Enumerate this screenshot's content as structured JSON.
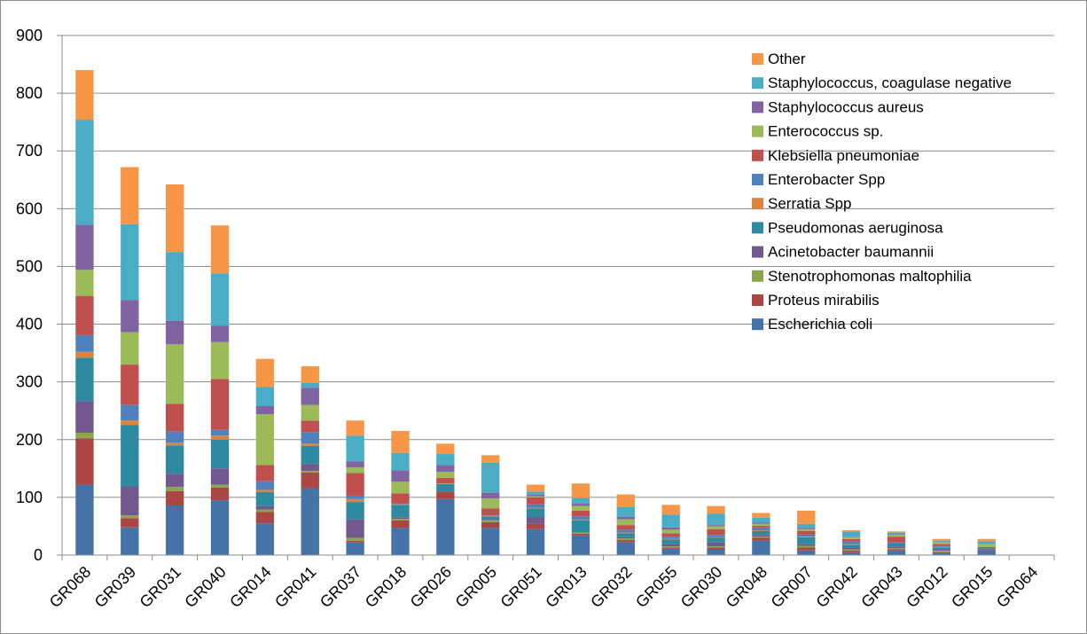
{
  "chart_data": {
    "type": "bar",
    "stacked": true,
    "title": "",
    "xlabel": "",
    "ylabel": "",
    "ylim": [
      0,
      900
    ],
    "yticks": [
      0,
      100,
      200,
      300,
      400,
      500,
      600,
      700,
      800,
      900
    ],
    "grid": true,
    "legend_position": "top-right",
    "categories": [
      "GR068",
      "GR039",
      "GR031",
      "GR040",
      "GR014",
      "GR041",
      "GR037",
      "GR018",
      "GR026",
      "GR005",
      "GR051",
      "GR013",
      "GR032",
      "GR055",
      "GR030",
      "GR048",
      "GR007",
      "GR042",
      "GR043",
      "GR012",
      "GR015",
      "GR064"
    ],
    "series": [
      {
        "name": "Escherichia coli",
        "color": "#4572a7",
        "values": [
          122,
          48,
          86,
          95,
          55,
          116,
          22,
          47,
          97,
          47,
          45,
          34,
          22,
          11,
          10,
          25,
          8,
          5,
          8,
          3,
          7,
          0
        ]
      },
      {
        "name": "Proteus mirabilis",
        "color": "#aa4643",
        "values": [
          80,
          16,
          25,
          22,
          20,
          27,
          3,
          13,
          13,
          10,
          9,
          3,
          4,
          2,
          3,
          5,
          5,
          3,
          2,
          2,
          0,
          0
        ]
      },
      {
        "name": "Stenotrophomonas maltophilia",
        "color": "#89a54e",
        "values": [
          10,
          5,
          7,
          5,
          4,
          3,
          5,
          3,
          0,
          3,
          0,
          2,
          3,
          2,
          2,
          2,
          3,
          2,
          2,
          3,
          0,
          0
        ]
      },
      {
        "name": "Acinetobacter baumannii",
        "color": "#71588f",
        "values": [
          55,
          50,
          23,
          28,
          6,
          12,
          32,
          2,
          0,
          1,
          12,
          0,
          2,
          4,
          7,
          3,
          3,
          3,
          3,
          2,
          2,
          0
        ]
      },
      {
        "name": "Pseudomonas aeruginosa",
        "color": "#2e8aa1",
        "values": [
          75,
          106,
          49,
          50,
          24,
          31,
          30,
          22,
          13,
          6,
          15,
          21,
          7,
          8,
          8,
          7,
          12,
          5,
          5,
          3,
          3,
          0
        ]
      },
      {
        "name": "Serratia Spp",
        "color": "#db843d",
        "values": [
          10,
          8,
          5,
          7,
          4,
          4,
          5,
          1,
          1,
          1,
          1,
          1,
          1,
          1,
          1,
          1,
          1,
          1,
          0,
          1,
          0,
          0
        ]
      },
      {
        "name": "Enterobacter Spp",
        "color": "#4f81bd",
        "values": [
          29,
          27,
          19,
          10,
          15,
          20,
          5,
          1,
          0,
          1,
          6,
          6,
          5,
          4,
          4,
          5,
          4,
          5,
          2,
          2,
          0,
          0
        ]
      },
      {
        "name": "Klebsiella pneumoniae",
        "color": "#c0504d",
        "values": [
          68,
          70,
          48,
          88,
          28,
          20,
          40,
          18,
          10,
          12,
          12,
          10,
          8,
          6,
          10,
          3,
          6,
          4,
          10,
          3,
          2,
          0
        ]
      },
      {
        "name": "Enterococcus sp.",
        "color": "#9bbb59",
        "values": [
          45,
          56,
          103,
          64,
          88,
          27,
          10,
          20,
          10,
          17,
          2,
          8,
          10,
          6,
          5,
          3,
          3,
          3,
          3,
          4,
          5,
          0
        ]
      },
      {
        "name": "Staphylococcus aureus",
        "color": "#8064a2",
        "values": [
          78,
          56,
          41,
          28,
          14,
          30,
          10,
          20,
          12,
          10,
          3,
          4,
          4,
          4,
          2,
          2,
          2,
          1,
          1,
          0,
          0,
          0
        ]
      },
      {
        "name": "Staphylococcus, coagulase negative",
        "color": "#4bacc6",
        "values": [
          182,
          131,
          119,
          91,
          33,
          8,
          45,
          30,
          19,
          52,
          5,
          10,
          17,
          22,
          20,
          9,
          7,
          8,
          3,
          2,
          5,
          0
        ]
      },
      {
        "name": "Other",
        "color": "#f79646",
        "values": [
          86,
          99,
          117,
          83,
          49,
          29,
          26,
          38,
          18,
          13,
          12,
          25,
          22,
          17,
          13,
          8,
          23,
          3,
          2,
          3,
          4,
          0
        ]
      }
    ]
  }
}
